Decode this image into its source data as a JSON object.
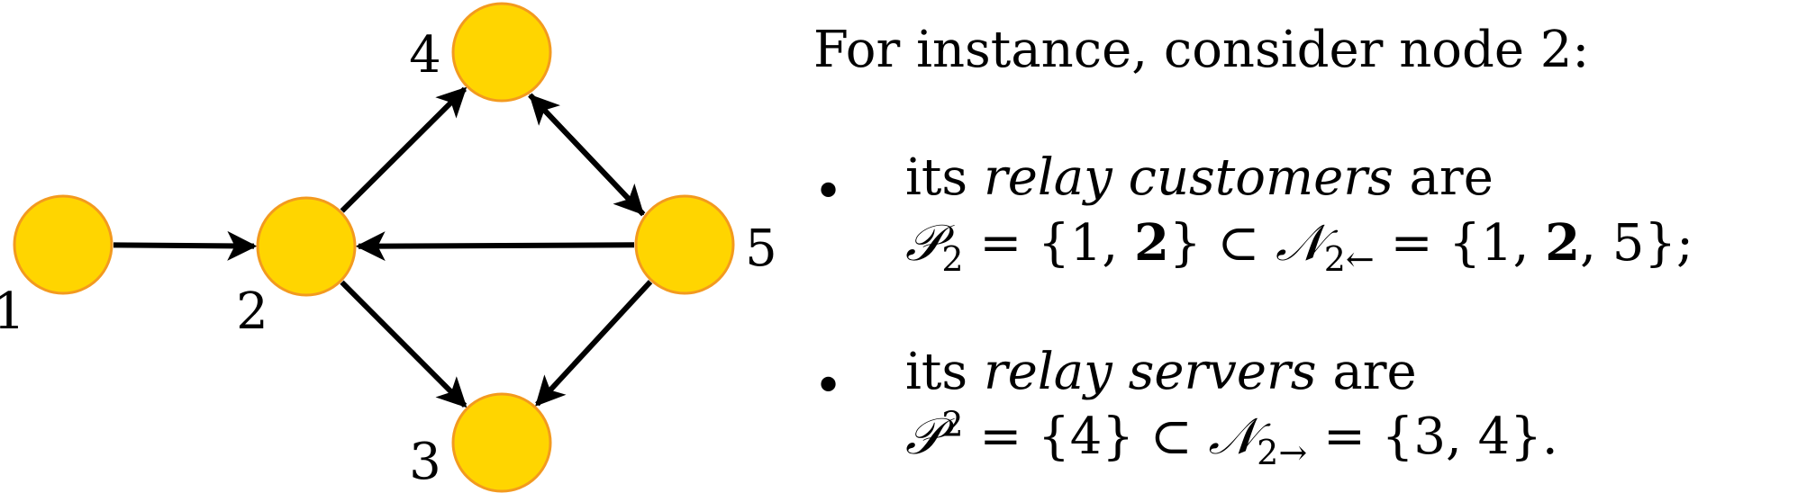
{
  "graph": {
    "node_color": "#FFD500",
    "node_border_color": "#F39A1F",
    "edge_color": "#000000",
    "nodes": [
      {
        "id": "1",
        "label": "1"
      },
      {
        "id": "2",
        "label": "2"
      },
      {
        "id": "3",
        "label": "3"
      },
      {
        "id": "4",
        "label": "4"
      },
      {
        "id": "5",
        "label": "5"
      }
    ],
    "edges": [
      {
        "from": "1",
        "to": "2"
      },
      {
        "from": "2",
        "to": "4"
      },
      {
        "from": "2",
        "to": "3"
      },
      {
        "from": "4",
        "to": "5"
      },
      {
        "from": "5",
        "to": "4"
      },
      {
        "from": "5",
        "to": "2"
      },
      {
        "from": "5",
        "to": "3"
      }
    ]
  },
  "text": {
    "intro": "For instance, consider node 2:",
    "bullet_symbol": "•",
    "customers": {
      "prefix": "its ",
      "term": "relay customers",
      "suffix": " are",
      "set_symbol": "𝒫",
      "set_sub": "2",
      "eq1": " = {1, ",
      "bold_member": "2",
      "eq1_close": "} ⊂ ",
      "nbhd_symbol": "𝒩",
      "nbhd_sub": "2←",
      "eq2": " = {1, ",
      "bold_member2": "2",
      "eq2_close": ", 5};"
    },
    "servers": {
      "prefix": "its ",
      "term": "relay servers",
      "suffix": " are",
      "set_symbol": "𝒫",
      "set_sup": "2",
      "eq1": " = {4} ⊂ ",
      "nbhd_symbol": "𝒩",
      "nbhd_sub": "2→",
      "eq2": " = {3, 4}."
    }
  }
}
